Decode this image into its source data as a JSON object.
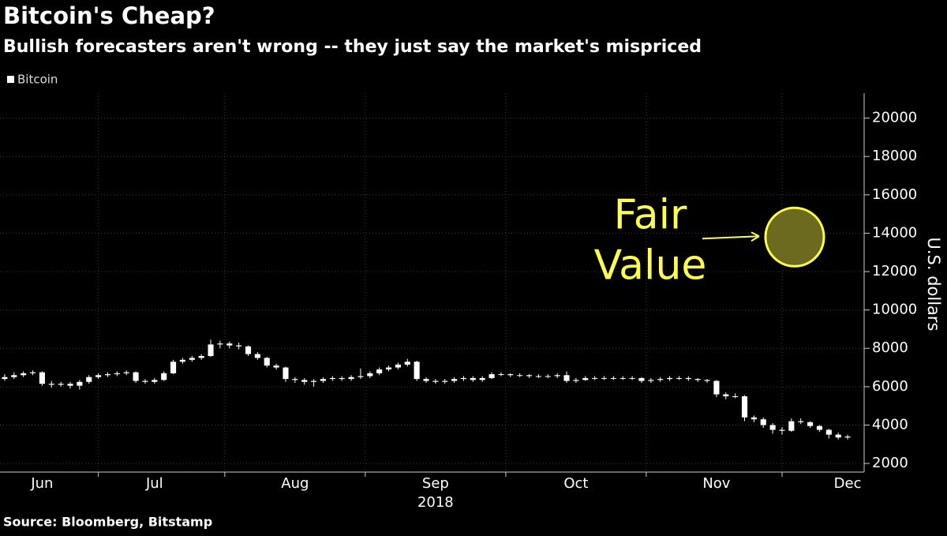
{
  "chart_data": {
    "type": "candlestick",
    "title": "Bitcoin's Cheap?",
    "subtitle": "Bullish forecasters aren't wrong -- they just say the market's mispriced",
    "source": "Source: Bloomberg, Bitstamp",
    "ylabel": "U.S. dollars",
    "xlabel": "2018",
    "categories": [
      null,
      null,
      null,
      null,
      "Jun",
      null,
      null,
      null,
      null,
      null,
      null,
      null,
      null,
      null,
      null,
      null,
      "Jul",
      null,
      null,
      null,
      null,
      null,
      null,
      null,
      null,
      null,
      null,
      null,
      null,
      null,
      null,
      "Aug",
      null,
      null,
      null,
      null,
      null,
      null,
      null,
      null,
      null,
      null,
      null,
      null,
      null,
      null,
      "Sep",
      null,
      null,
      null,
      null,
      null,
      null,
      null,
      null,
      null,
      null,
      null,
      null,
      null,
      null,
      "Oct",
      null,
      null,
      null,
      null,
      null,
      null,
      null,
      null,
      null,
      null,
      null,
      null,
      null,
      null,
      "Nov",
      null,
      null,
      null,
      null,
      null,
      null,
      null,
      null,
      null,
      null,
      null,
      null,
      null,
      "Dec"
    ],
    "series": [
      {
        "name": "Bitcoin",
        "color": "#ffffff",
        "open": [
          6400,
          6500,
          6600,
          6700,
          6750,
          6150,
          6100,
          6150,
          6050,
          6250,
          6500,
          6600,
          6650,
          6700,
          6750,
          6300,
          6250,
          6350,
          6700,
          7300,
          7400,
          7500,
          7600,
          8200,
          8250,
          8150,
          8100,
          7700,
          7500,
          7100,
          7000,
          6400,
          6350,
          6250,
          6300,
          6400,
          6450,
          6400,
          6500,
          6550,
          6700,
          6900,
          7000,
          7150,
          7300,
          6400,
          6300,
          6250,
          6300,
          6400,
          6450,
          6350,
          6450,
          6650,
          6650,
          6600,
          6600,
          6550,
          6550,
          6550,
          6600,
          6300,
          6350,
          6450,
          6450,
          6450,
          6450,
          6450,
          6450,
          6300,
          6350,
          6400,
          6450,
          6450,
          6400,
          6350,
          6300,
          5600,
          5500,
          5500,
          4400,
          4300,
          4000,
          3750,
          3700,
          4200,
          4150,
          3950,
          3750,
          3500,
          3350
        ],
        "high": [
          6650,
          6750,
          6800,
          6850,
          6800,
          6300,
          6250,
          6250,
          6350,
          6600,
          6700,
          6750,
          6800,
          6850,
          6800,
          6400,
          6450,
          6800,
          7400,
          7500,
          7600,
          7700,
          8450,
          8400,
          8350,
          8300,
          8150,
          7800,
          7550,
          7200,
          7050,
          6500,
          6450,
          6400,
          6500,
          6550,
          6550,
          6600,
          6950,
          6800,
          7000,
          7100,
          7250,
          7450,
          7350,
          6500,
          6400,
          6400,
          6500,
          6550,
          6550,
          6550,
          6750,
          6750,
          6700,
          6700,
          6650,
          6650,
          6650,
          6700,
          6800,
          6450,
          6550,
          6550,
          6550,
          6550,
          6550,
          6550,
          6500,
          6450,
          6500,
          6550,
          6550,
          6550,
          6450,
          6400,
          6350,
          5700,
          5650,
          5550,
          4500,
          4400,
          4100,
          3900,
          4350,
          4350,
          4200,
          4000,
          3800,
          3600,
          3500
        ],
        "low": [
          6300,
          6400,
          6500,
          6600,
          6050,
          5950,
          6000,
          5900,
          5850,
          6150,
          6400,
          6500,
          6550,
          6600,
          6200,
          6150,
          6150,
          6300,
          6650,
          7200,
          7300,
          7400,
          7550,
          8000,
          8000,
          7950,
          7600,
          7400,
          7000,
          6900,
          6250,
          6200,
          6100,
          6000,
          6200,
          6300,
          6300,
          6300,
          6400,
          6450,
          6600,
          6800,
          6900,
          7050,
          6300,
          6200,
          6150,
          6150,
          6200,
          6300,
          6250,
          6250,
          6400,
          6550,
          6500,
          6500,
          6450,
          6450,
          6450,
          6450,
          6200,
          6200,
          6300,
          6350,
          6350,
          6350,
          6350,
          6350,
          6200,
          6200,
          6250,
          6300,
          6350,
          6300,
          6250,
          6200,
          5450,
          5350,
          5400,
          4200,
          4150,
          3850,
          3550,
          3500,
          3650,
          4050,
          3850,
          3650,
          3300,
          3250,
          3250
        ],
        "close": [
          6500,
          6600,
          6700,
          6750,
          6150,
          6100,
          6150,
          6050,
          6250,
          6500,
          6600,
          6650,
          6700,
          6750,
          6300,
          6250,
          6350,
          6700,
          7300,
          7400,
          7500,
          7600,
          8200,
          8250,
          8150,
          8100,
          7700,
          7500,
          7100,
          7000,
          6400,
          6350,
          6250,
          6300,
          6400,
          6450,
          6400,
          6500,
          6550,
          6700,
          6900,
          7000,
          7150,
          7300,
          6400,
          6300,
          6250,
          6300,
          6400,
          6450,
          6350,
          6450,
          6650,
          6650,
          6600,
          6600,
          6550,
          6550,
          6550,
          6600,
          6300,
          6350,
          6450,
          6450,
          6450,
          6450,
          6450,
          6450,
          6300,
          6350,
          6400,
          6450,
          6450,
          6400,
          6350,
          6300,
          5600,
          5500,
          5500,
          4400,
          4300,
          4000,
          3750,
          3700,
          4200,
          4150,
          3950,
          3750,
          3500,
          3350,
          3400
        ]
      }
    ],
    "ylim": [
      1550,
      21300
    ],
    "yticks": [
      2000,
      4000,
      6000,
      8000,
      10000,
      12000,
      14000,
      16000,
      18000,
      20000
    ],
    "grid": true,
    "legend": "top-left",
    "annotation": {
      "lines": [
        "Fair",
        "Value"
      ],
      "value": 13800,
      "color": "#ffff4d",
      "fill": "#6b6a1e"
    }
  }
}
